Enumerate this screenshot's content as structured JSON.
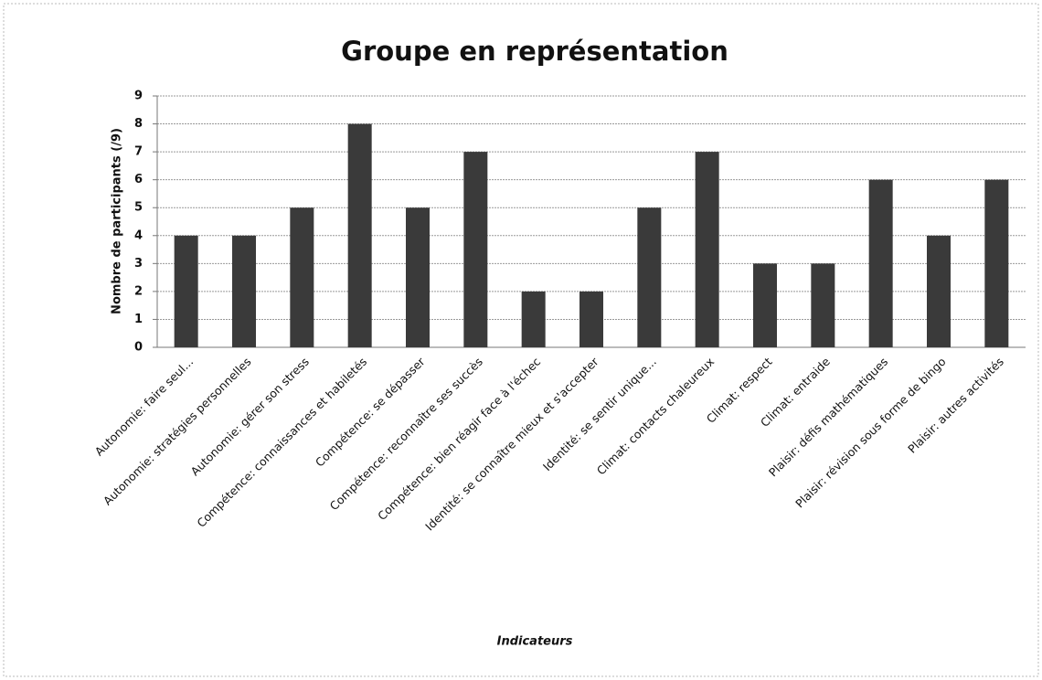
{
  "chart_data": {
    "type": "bar",
    "title": "Groupe en représentation",
    "y_label": "Nombre de participants (/9)",
    "x_label": "Indicateurs",
    "categories": [
      "Autonomie: faire seul...",
      "Autonomie: stratégies personnelles",
      "Autonomie: gérer son stress",
      "Compétence: connaissances et habiletés",
      "Compétence: se dépasser",
      "Compétence: reconnaître ses succès",
      "Compétence: bien réagir face à l'échec",
      "Identité: se connaître mieux et s'accepter",
      "Identité: se sentir unique...",
      "Climat: contacts chaleureux",
      "Climat: respect",
      "Climat: entraide",
      "Plaisir: défis mathématiques",
      "Plaisir: révision sous forme de bingo",
      "Plaisir: autres activités"
    ],
    "values": [
      4,
      4,
      5,
      8,
      5,
      7,
      2,
      2,
      5,
      7,
      3,
      3,
      6,
      4,
      6
    ],
    "color": "#3a3a3a",
    "ylim": [
      0,
      9
    ],
    "yticks": [
      0,
      1,
      2,
      3,
      4,
      5,
      6,
      7,
      8,
      9
    ],
    "grid": true
  }
}
